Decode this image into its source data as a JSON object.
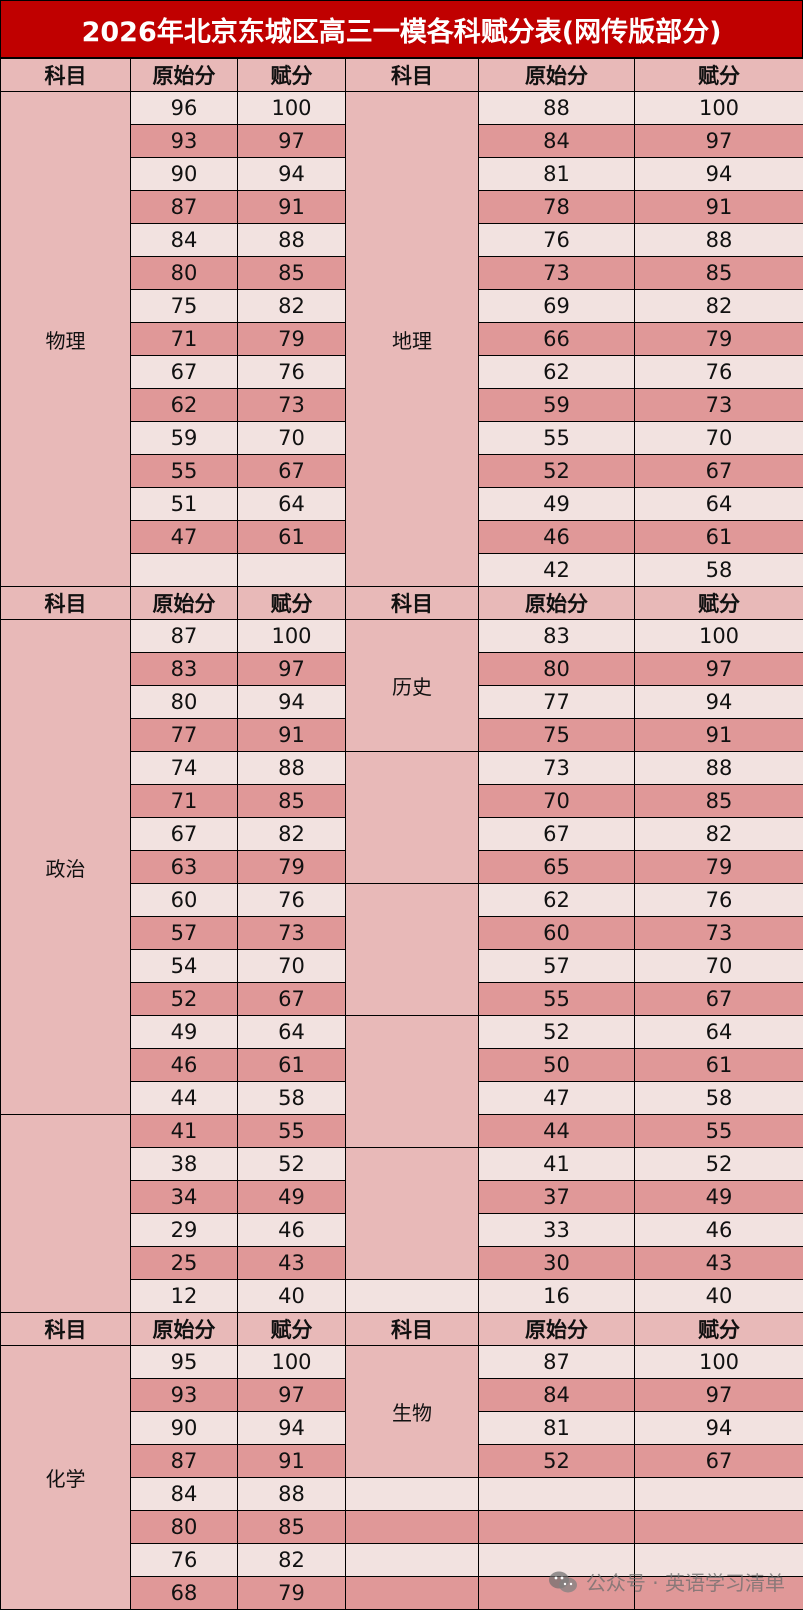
{
  "title": "2026年北京东城区高三一模各科赋分表(网传版部分)",
  "headers": [
    "科目",
    "原始分",
    "赋分",
    "科目",
    "原始分",
    "赋分"
  ],
  "colors": {
    "title_bg": "#c00000",
    "header_bg": "#e8b9b8",
    "row_light": "#f2e2e0",
    "row_dark": "#e09898"
  },
  "sections": [
    {
      "left": {
        "spans": [
          {
            "label": "物理",
            "rows": 15
          }
        ],
        "raw": [
          "96",
          "93",
          "90",
          "87",
          "84",
          "80",
          "75",
          "71",
          "67",
          "62",
          "59",
          "55",
          "51",
          "47",
          ""
        ],
        "scaled": [
          "100",
          "97",
          "94",
          "91",
          "88",
          "85",
          "82",
          "79",
          "76",
          "73",
          "70",
          "67",
          "64",
          "61",
          ""
        ]
      },
      "right": {
        "spans": [
          {
            "label": "地理",
            "rows": 15
          }
        ],
        "raw": [
          "88",
          "84",
          "81",
          "78",
          "76",
          "73",
          "69",
          "66",
          "62",
          "59",
          "55",
          "52",
          "49",
          "46",
          "42"
        ],
        "scaled": [
          "100",
          "97",
          "94",
          "91",
          "88",
          "85",
          "82",
          "79",
          "76",
          "73",
          "70",
          "67",
          "64",
          "61",
          "58"
        ]
      }
    },
    {
      "left": {
        "spans": [
          {
            "label": "政治",
            "rows": 15
          },
          {
            "label": "",
            "rows": 6
          }
        ],
        "raw": [
          "87",
          "83",
          "80",
          "77",
          "74",
          "71",
          "67",
          "63",
          "60",
          "57",
          "54",
          "52",
          "49",
          "46",
          "44",
          "41",
          "38",
          "34",
          "29",
          "25",
          "12"
        ],
        "scaled": [
          "100",
          "97",
          "94",
          "91",
          "88",
          "85",
          "82",
          "79",
          "76",
          "73",
          "70",
          "67",
          "64",
          "61",
          "58",
          "55",
          "52",
          "49",
          "46",
          "43",
          "40"
        ]
      },
      "right": {
        "spans": [
          {
            "label": "历史",
            "rows": 4
          },
          {
            "label": "",
            "rows": 4
          },
          {
            "label": "",
            "rows": 4
          },
          {
            "label": "",
            "rows": 4
          },
          {
            "label": "",
            "rows": 4
          },
          {
            "label": "",
            "rows": 1
          }
        ],
        "raw": [
          "83",
          "80",
          "77",
          "75",
          "73",
          "70",
          "67",
          "65",
          "62",
          "60",
          "57",
          "55",
          "52",
          "50",
          "47",
          "44",
          "41",
          "37",
          "33",
          "30",
          "16"
        ],
        "scaled": [
          "100",
          "97",
          "94",
          "91",
          "88",
          "85",
          "82",
          "79",
          "76",
          "73",
          "70",
          "67",
          "64",
          "61",
          "58",
          "55",
          "52",
          "49",
          "46",
          "43",
          "40"
        ]
      }
    },
    {
      "left": {
        "spans": [
          {
            "label": "化学",
            "rows": 8
          }
        ],
        "raw": [
          "95",
          "93",
          "90",
          "87",
          "84",
          "80",
          "76",
          "68"
        ],
        "scaled": [
          "100",
          "97",
          "94",
          "91",
          "88",
          "85",
          "82",
          "79"
        ]
      },
      "right": {
        "spans": [
          {
            "label": "生物",
            "rows": 4
          },
          {
            "label": "",
            "rows": 1
          },
          {
            "label": "",
            "rows": 1
          },
          {
            "label": "",
            "rows": 1
          },
          {
            "label": "",
            "rows": 1
          }
        ],
        "raw": [
          "87",
          "84",
          "81",
          "52",
          "",
          "",
          "",
          ""
        ],
        "scaled": [
          "100",
          "97",
          "94",
          "67",
          "",
          "",
          "",
          ""
        ]
      }
    }
  ],
  "watermark": {
    "text": "公众号 · 英语学习清单",
    "icon": "wechat-icon"
  }
}
